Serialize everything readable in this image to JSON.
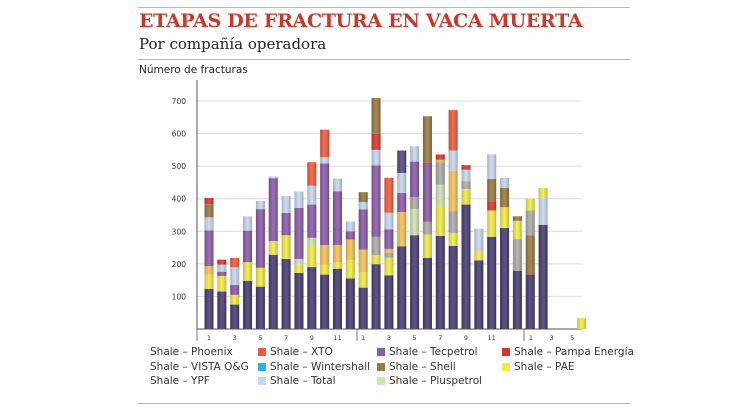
{
  "header": {
    "title": "ETAPAS DE FRACTURA EN VACA MUERTA",
    "subtitle": "Por compañía operadora"
  },
  "chart_data": {
    "type": "bar",
    "stacked": true,
    "title": "ETAPAS DE FRACTURA EN VACA MUERTA",
    "subtitle": "Por compañía operadora",
    "ylabel": "Número de fracturas",
    "xlabel": "",
    "ylim": [
      0,
      750
    ],
    "yticks": [
      100,
      200,
      300,
      400,
      500,
      600,
      700
    ],
    "grid": true,
    "x_tick_groups": [
      {
        "ticks": [
          "1",
          "3",
          "5",
          "7",
          "9",
          "11"
        ]
      },
      {
        "ticks": [
          "1",
          "3",
          "5",
          "7",
          "9",
          "11"
        ]
      },
      {
        "ticks": [
          "1",
          "3",
          "5"
        ]
      }
    ],
    "legend_position": "bottom",
    "series": [
      {
        "key": "Phoenix",
        "name": "Shale – Phoenix",
        "color": "#aeaaa6",
        "swatch": false
      },
      {
        "key": "XTO",
        "name": "Shale – XTO",
        "color": "#ef5b3c",
        "swatch": true
      },
      {
        "key": "Tecpetrol",
        "name": "Shale – Tecpetrol",
        "color": "#8a5aa6",
        "swatch": true
      },
      {
        "key": "Pampa",
        "name": "Shale – Pampa Energía",
        "color": "#d8342f",
        "swatch": true
      },
      {
        "key": "VISTA",
        "name": "Shale – VISTA O&G",
        "color": "#f6c155",
        "swatch": false
      },
      {
        "key": "Wintershall",
        "name": "Shale – Wintershall",
        "color": "#2fb2e3",
        "swatch": true
      },
      {
        "key": "Shell",
        "name": "Shale – Shell",
        "color": "#9a7840",
        "swatch": true
      },
      {
        "key": "PAE",
        "name": "Shale – PAE",
        "color": "#f3ea45",
        "swatch": true
      },
      {
        "key": "YPF",
        "name": "Shale – YPF",
        "color": "#463c70",
        "swatch": false
      },
      {
        "key": "Total",
        "name": "Shale – Total",
        "color": "#c6d8ec",
        "swatch": true
      },
      {
        "key": "Pluspetrol",
        "name": "Shale – Pluspetrol",
        "color": "#cfe1b6",
        "swatch": true
      },
      {
        "key": "Dark",
        "name": "",
        "color": "#4f4a7e",
        "swatch": false
      }
    ],
    "bars": [
      {
        "group": 0,
        "month": 1,
        "segments": [
          [
            "YPF",
            123
          ],
          [
            "PAE",
            44
          ],
          [
            "VISTA",
            26
          ],
          [
            "Tecpetrol",
            110
          ],
          [
            "Total",
            40
          ],
          [
            "Shell",
            40
          ],
          [
            "Pampa",
            19
          ]
        ]
      },
      {
        "group": 0,
        "month": 2,
        "segments": [
          [
            "YPF",
            115
          ],
          [
            "PAE",
            48
          ],
          [
            "Tecpetrol",
            13
          ],
          [
            "Total",
            22
          ],
          [
            "Pampa",
            15
          ]
        ]
      },
      {
        "group": 0,
        "month": 3,
        "segments": [
          [
            "YPF",
            75
          ],
          [
            "PAE",
            30
          ],
          [
            "Tecpetrol",
            30
          ],
          [
            "Total",
            55
          ],
          [
            "XTO",
            28
          ]
        ]
      },
      {
        "group": 0,
        "month": 4,
        "segments": [
          [
            "YPF",
            148
          ],
          [
            "PAE",
            57
          ],
          [
            "Tecpetrol",
            97
          ],
          [
            "Total",
            44
          ]
        ]
      },
      {
        "group": 0,
        "month": 5,
        "segments": [
          [
            "YPF",
            130
          ],
          [
            "PAE",
            58
          ],
          [
            "Tecpetrol",
            180
          ],
          [
            "Total",
            25
          ]
        ]
      },
      {
        "group": 0,
        "month": 6,
        "segments": [
          [
            "YPF",
            228
          ],
          [
            "PAE",
            42
          ],
          [
            "Tecpetrol",
            193
          ],
          [
            "Total",
            5
          ]
        ]
      },
      {
        "group": 0,
        "month": 7,
        "segments": [
          [
            "YPF",
            215
          ],
          [
            "PAE",
            73
          ],
          [
            "Tecpetrol",
            68
          ],
          [
            "Total",
            52
          ]
        ]
      },
      {
        "group": 0,
        "month": 8,
        "segments": [
          [
            "YPF",
            172
          ],
          [
            "PAE",
            25
          ],
          [
            "Pluspetrol",
            18
          ],
          [
            "Tecpetrol",
            157
          ],
          [
            "Total",
            50
          ]
        ]
      },
      {
        "group": 0,
        "month": 9,
        "segments": [
          [
            "YPF",
            190
          ],
          [
            "PAE",
            68
          ],
          [
            "Pluspetrol",
            22
          ],
          [
            "Tecpetrol",
            102
          ],
          [
            "Total",
            58
          ],
          [
            "XTO",
            72
          ]
        ]
      },
      {
        "group": 0,
        "month": 10,
        "segments": [
          [
            "YPF",
            167
          ],
          [
            "PAE",
            31
          ],
          [
            "VISTA",
            60
          ],
          [
            "Tecpetrol",
            250
          ],
          [
            "Total",
            20
          ],
          [
            "XTO",
            84
          ]
        ]
      },
      {
        "group": 0,
        "month": 11,
        "segments": [
          [
            "YPF",
            185
          ],
          [
            "PAE",
            20
          ],
          [
            "VISTA",
            53
          ],
          [
            "Tecpetrol",
            165
          ],
          [
            "Total",
            39
          ]
        ]
      },
      {
        "group": 0,
        "month": 12,
        "segments": [
          [
            "YPF",
            155
          ],
          [
            "PAE",
            57
          ],
          [
            "VISTA",
            63
          ],
          [
            "Tecpetrol",
            25
          ],
          [
            "Total",
            30
          ]
        ]
      },
      {
        "group": 1,
        "month": 1,
        "segments": [
          [
            "YPF",
            127
          ],
          [
            "PAE",
            48
          ],
          [
            "VISTA",
            69
          ],
          [
            "Tecpetrol",
            123
          ],
          [
            "Total",
            23
          ],
          [
            "Shell",
            30
          ]
        ]
      },
      {
        "group": 1,
        "month": 2,
        "segments": [
          [
            "YPF",
            199
          ],
          [
            "PAE",
            28
          ],
          [
            "Phoenix",
            56
          ],
          [
            "Tecpetrol",
            219
          ],
          [
            "Total",
            48
          ],
          [
            "Pampa",
            49
          ],
          [
            "Shell",
            110
          ]
        ]
      },
      {
        "group": 1,
        "month": 3,
        "segments": [
          [
            "YPF",
            165
          ],
          [
            "PAE",
            54
          ],
          [
            "Phoenix",
            15
          ],
          [
            "VISTA",
            12
          ],
          [
            "Tecpetrol",
            60
          ],
          [
            "Total",
            51
          ],
          [
            "XTO",
            107
          ]
        ]
      },
      {
        "group": 1,
        "month": 4,
        "segments": [
          [
            "YPF",
            254
          ],
          [
            "VISTA",
            105
          ],
          [
            "Tecpetrol",
            59
          ],
          [
            "Total",
            61
          ],
          [
            "Dark",
            69
          ]
        ]
      },
      {
        "group": 1,
        "month": 5,
        "segments": [
          [
            "YPF",
            288
          ],
          [
            "Pluspetrol",
            81
          ],
          [
            "Phoenix",
            36
          ],
          [
            "Tecpetrol",
            109
          ],
          [
            "Total",
            47
          ]
        ]
      },
      {
        "group": 1,
        "month": 6,
        "segments": [
          [
            "YPF",
            218
          ],
          [
            "PAE",
            72
          ],
          [
            "Phoenix",
            39
          ],
          [
            "Tecpetrol",
            176
          ],
          [
            "Pampa",
            5
          ],
          [
            "Shell",
            143
          ]
        ]
      },
      {
        "group": 1,
        "month": 7,
        "segments": [
          [
            "YPF",
            286
          ],
          [
            "PAE",
            92
          ],
          [
            "Pluspetrol",
            65
          ],
          [
            "Phoenix",
            69
          ],
          [
            "VISTA",
            8
          ],
          [
            "Pampa",
            16
          ]
        ]
      },
      {
        "group": 1,
        "month": 8,
        "segments": [
          [
            "YPF",
            255
          ],
          [
            "PAE",
            40
          ],
          [
            "Phoenix",
            67
          ],
          [
            "VISTA",
            124
          ],
          [
            "Total",
            62
          ],
          [
            "XTO",
            124
          ]
        ]
      },
      {
        "group": 1,
        "month": 9,
        "segments": [
          [
            "YPF",
            382
          ],
          [
            "PAE",
            48
          ],
          [
            "Phoenix",
            24
          ],
          [
            "Total",
            35
          ],
          [
            "Pampa",
            14
          ]
        ]
      },
      {
        "group": 1,
        "month": 10,
        "segments": [
          [
            "YPF",
            211
          ],
          [
            "PAE",
            29
          ],
          [
            "Total",
            68
          ]
        ]
      },
      {
        "group": 1,
        "month": 11,
        "segments": [
          [
            "YPF",
            283
          ],
          [
            "PAE",
            81
          ],
          [
            "Pampa",
            26
          ],
          [
            "Shell",
            71
          ],
          [
            "Total",
            75
          ]
        ]
      },
      {
        "group": 1,
        "month": 12,
        "segments": [
          [
            "YPF",
            310
          ],
          [
            "PAE",
            64
          ],
          [
            "Shell",
            59
          ],
          [
            "Total",
            31
          ]
        ]
      },
      {
        "group": 1,
        "month": 13,
        "segments": [
          [
            "YPF",
            178
          ],
          [
            "Phoenix",
            98
          ],
          [
            "PAE",
            56
          ],
          [
            "Shell",
            14
          ]
        ]
      },
      {
        "group": 2,
        "month": 1,
        "segments": [
          [
            "YPF",
            167
          ],
          [
            "Shell",
            121
          ],
          [
            "Phoenix",
            76
          ],
          [
            "PAE",
            36
          ]
        ]
      },
      {
        "group": 2,
        "month": 2,
        "segments": [
          [
            "YPF",
            320
          ],
          [
            "Total",
            82
          ],
          [
            "PAE",
            31
          ]
        ]
      },
      {
        "group": 2,
        "month": 5,
        "segments": [
          [
            "PAE",
            33
          ]
        ]
      }
    ]
  }
}
